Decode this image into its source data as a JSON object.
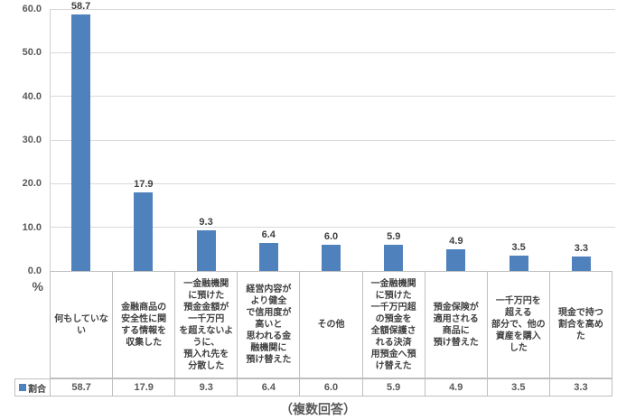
{
  "chart_data": {
    "type": "bar",
    "title": "",
    "ylabel": "%",
    "ylim": [
      0,
      60
    ],
    "yticks": [
      0,
      10,
      20,
      30,
      40,
      50,
      60
    ],
    "ytick_labels": [
      "0.0",
      "10.0",
      "20.0",
      "30.0",
      "40.0",
      "50.0",
      "60.0"
    ],
    "grid": true,
    "bar_color": "#4f81bd",
    "legend_position": "bottom-table",
    "categories": [
      "何もしていな\nい",
      "金融商品の\n安全性に関\nする情報を\n収集した",
      "一金融機関\nに預けた\n預金金額が\n一千万円\nを超えないよ\nうに、\n預入れ先を\n分散した",
      "経営内容が\nより健全\nで信用度が\n高いと\n思われる金\n融機関に\n預け替えた",
      "その他",
      "一金融機関\nに預けた\n一千万円超\nの預金を\n全額保護さ\nれる決済\n用預金へ預\nけ替えた",
      "預金保険が\n適用される\n商品に\n預け替えた",
      "一千万円を\n超える\n部分で、他の\n資産を購入\nした",
      "現金で持つ\n割合を高め\nた"
    ],
    "series": [
      {
        "name": "割合",
        "values": [
          58.7,
          17.9,
          9.3,
          6.4,
          6.0,
          5.9,
          4.9,
          3.5,
          3.3
        ]
      }
    ],
    "value_labels": [
      "58.7",
      "17.9",
      "9.3",
      "6.4",
      "6.0",
      "5.9",
      "4.9",
      "3.5",
      "3.3"
    ],
    "footnote": "（複数回答）"
  }
}
